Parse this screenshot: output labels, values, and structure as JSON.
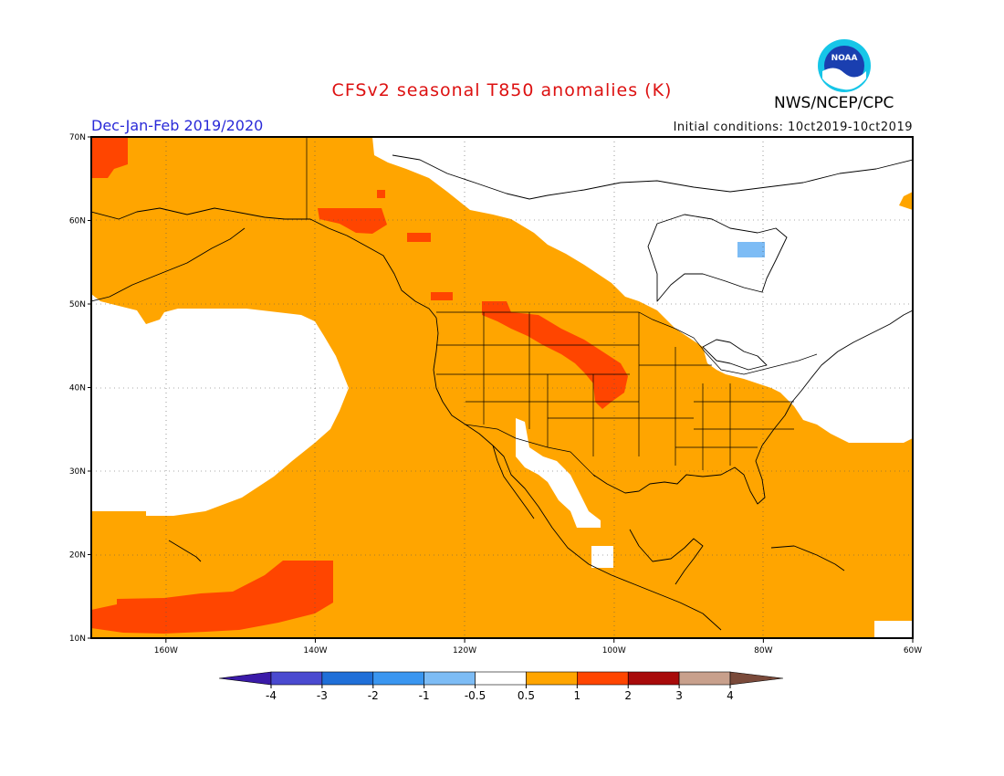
{
  "title": "CFSv2 seasonal T850 anomalies (K)",
  "agency": "NWS/NCEP/CPC",
  "logo_text": "NOAA",
  "season_label": "Dec-Jan-Feb 2019/2020",
  "initial_conditions": "Initial conditions: 10ct2019-10ct2019",
  "colors": {
    "title": "#dd1111",
    "season": "#2a2ad8",
    "ocean_land_base": "#ffa500"
  },
  "map": {
    "lon_range": [
      -170,
      -60
    ],
    "lat_range": [
      10,
      70
    ],
    "lon_ticks": [
      {
        "value": -160,
        "label": "160W"
      },
      {
        "value": -140,
        "label": "140W"
      },
      {
        "value": -120,
        "label": "120W"
      },
      {
        "value": -100,
        "label": "100W"
      },
      {
        "value": -80,
        "label": "80W"
      },
      {
        "value": -60,
        "label": "60W"
      }
    ],
    "lat_ticks": [
      {
        "value": 10,
        "label": "10N"
      },
      {
        "value": 20,
        "label": "20N"
      },
      {
        "value": 30,
        "label": "30N"
      },
      {
        "value": 40,
        "label": "40N"
      },
      {
        "value": 50,
        "label": "50N"
      },
      {
        "value": 60,
        "label": "60N"
      },
      {
        "value": 70,
        "label": "70N"
      }
    ]
  },
  "colorbar": {
    "boundaries": [
      "-4",
      "-3",
      "-2",
      "-1",
      "-0.5",
      "0.5",
      "1",
      "2",
      "3",
      "4"
    ],
    "colors": [
      "#3a1aa8",
      "#4a4ad0",
      "#1f6fd8",
      "#3a96f0",
      "#7dbcf5",
      "#ffffff",
      "#ffa500",
      "#ff4500",
      "#a80a0a",
      "#c8a08c",
      "#7a4a3a"
    ]
  }
}
